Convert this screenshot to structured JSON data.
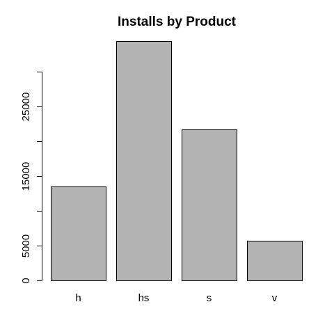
{
  "chart_data": {
    "type": "bar",
    "title": "Installs by Product",
    "xlabel": "",
    "ylabel": "",
    "categories": [
      "h",
      "hs",
      "s",
      "v"
    ],
    "values": [
      13500,
      34400,
      21700,
      5700
    ],
    "ylim": [
      0,
      34400
    ],
    "y_ticks": [
      0,
      5000,
      10000,
      15000,
      20000,
      25000,
      30000
    ],
    "y_tick_labels": [
      "0",
      "5000",
      "",
      "15000",
      "",
      "25000",
      ""
    ],
    "colors": {
      "bar_fill": "#b3b3b3",
      "bar_stroke": "#000000",
      "background": "#ffffff"
    },
    "grid": false,
    "legend": "none"
  }
}
